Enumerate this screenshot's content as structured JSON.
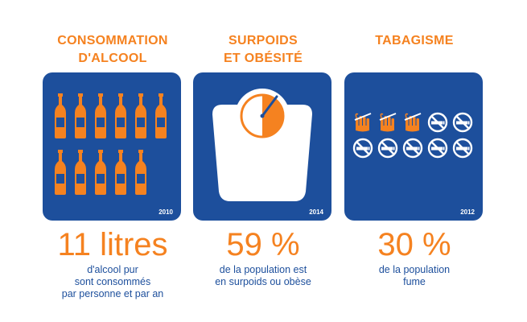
{
  "colors": {
    "orange": "#f58220",
    "blue": "#1d4f9c",
    "white": "#ffffff"
  },
  "alcohol": {
    "heading": [
      "CONSOMMATION",
      "D'ALCOOL"
    ],
    "icon": "bottle-icon",
    "bottle_count": 11,
    "year": "2010",
    "value": "11 litres",
    "description": [
      "d'alcool pur",
      "sont consommés",
      "par personne et par an"
    ]
  },
  "obesity": {
    "heading": [
      "SURPOIDS",
      "ET OBÉSITÉ"
    ],
    "icon": "scale-icon",
    "year": "2014",
    "value": "59 %",
    "description": [
      "de la population est",
      "en surpoids ou obèse"
    ]
  },
  "smoking": {
    "heading": [
      "TABAGISME"
    ],
    "icons": [
      "smoking-hand-icon",
      "no-smoking-icon"
    ],
    "smokers": 3,
    "non_smokers": 7,
    "year": "2012",
    "value": "30 %",
    "description": [
      "de la population",
      "fume"
    ]
  }
}
